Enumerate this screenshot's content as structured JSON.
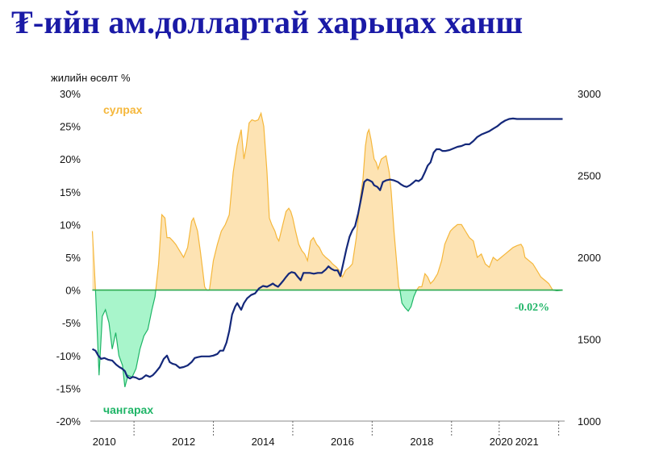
{
  "title": "₮-ийн ам.доллартай харьцах ханш",
  "chart_data": {
    "type": "area",
    "ylabel": "жилийн өсөлт %",
    "ylim": [
      -20,
      30
    ],
    "yticks": [
      "30%",
      "25%",
      "20%",
      "15%",
      "10%",
      "5%",
      "0%",
      "-5%",
      "-10%",
      "-15%",
      "-20%"
    ],
    "y2lim": [
      1000,
      3000
    ],
    "y2ticks": [
      "3000",
      "2500",
      "2000",
      "1500",
      "1000"
    ],
    "xlim": [
      2009.85,
      2021.8
    ],
    "xticks": [
      {
        "label": "2010",
        "x": 2010.2
      },
      {
        "label": "2012",
        "x": 2012.2
      },
      {
        "label": "2014",
        "x": 2014.2
      },
      {
        "label": "2016",
        "x": 2016.2
      },
      {
        "label": "2018",
        "x": 2018.2
      },
      {
        "label": "2020",
        "x": 2020.2
      },
      {
        "label": "2021",
        "x": 2020.85
      }
    ],
    "annotations": {
      "up": "сулрах",
      "down": "чангарах",
      "last": "-0.02%"
    },
    "colors": {
      "up": "#f5b73b",
      "up_fill": "#fde3b3",
      "down": "#1fb567",
      "down_fill": "#a8f5cb",
      "rate": "#14287a",
      "zero": "#2da94f"
    },
    "series": [
      {
        "role": "yoy",
        "points": [
          [
            2009.9,
            9
          ],
          [
            2009.98,
            0
          ],
          [
            2010.07,
            -13
          ],
          [
            2010.15,
            -4
          ],
          [
            2010.23,
            -3
          ],
          [
            2010.32,
            -5
          ],
          [
            2010.4,
            -9
          ],
          [
            2010.49,
            -6.5
          ],
          [
            2010.57,
            -10
          ],
          [
            2010.66,
            -11.5
          ],
          [
            2010.72,
            -14.8
          ],
          [
            2010.8,
            -13
          ],
          [
            2010.9,
            -13.3
          ],
          [
            2011.0,
            -12
          ],
          [
            2011.1,
            -9
          ],
          [
            2011.2,
            -7
          ],
          [
            2011.3,
            -6
          ],
          [
            2011.4,
            -3
          ],
          [
            2011.48,
            -1
          ],
          [
            2011.57,
            4
          ],
          [
            2011.65,
            11.5
          ],
          [
            2011.73,
            11
          ],
          [
            2011.78,
            8
          ],
          [
            2011.85,
            8
          ],
          [
            2011.93,
            7.5
          ],
          [
            2012.0,
            7
          ],
          [
            2012.1,
            6
          ],
          [
            2012.2,
            5
          ],
          [
            2012.3,
            6.5
          ],
          [
            2012.4,
            10.5
          ],
          [
            2012.45,
            11
          ],
          [
            2012.55,
            9
          ],
          [
            2012.62,
            6
          ],
          [
            2012.68,
            3
          ],
          [
            2012.73,
            0.5
          ],
          [
            2012.78,
            0
          ],
          [
            2012.85,
            0
          ],
          [
            2012.95,
            4.5
          ],
          [
            2013.05,
            7
          ],
          [
            2013.15,
            9
          ],
          [
            2013.25,
            10
          ],
          [
            2013.35,
            11.5
          ],
          [
            2013.45,
            18
          ],
          [
            2013.55,
            22
          ],
          [
            2013.65,
            24.5
          ],
          [
            2013.72,
            20
          ],
          [
            2013.78,
            22
          ],
          [
            2013.85,
            25.5
          ],
          [
            2013.92,
            26
          ],
          [
            2014.0,
            25.8
          ],
          [
            2014.08,
            26
          ],
          [
            2014.15,
            27
          ],
          [
            2014.22,
            25
          ],
          [
            2014.3,
            18
          ],
          [
            2014.36,
            11
          ],
          [
            2014.42,
            10
          ],
          [
            2014.5,
            9
          ],
          [
            2014.55,
            8
          ],
          [
            2014.6,
            7.5
          ],
          [
            2014.7,
            10
          ],
          [
            2014.78,
            12
          ],
          [
            2014.85,
            12.5
          ],
          [
            2014.9,
            12
          ],
          [
            2014.95,
            11
          ],
          [
            2015.02,
            9
          ],
          [
            2015.1,
            7
          ],
          [
            2015.18,
            6
          ],
          [
            2015.25,
            5.5
          ],
          [
            2015.32,
            4.5
          ],
          [
            2015.4,
            7.5
          ],
          [
            2015.47,
            8
          ],
          [
            2015.55,
            7
          ],
          [
            2015.62,
            6.5
          ],
          [
            2015.7,
            5.5
          ],
          [
            2015.78,
            5
          ],
          [
            2015.88,
            4.5
          ],
          [
            2015.95,
            4
          ],
          [
            2016.05,
            3.5
          ],
          [
            2016.12,
            3
          ],
          [
            2016.2,
            2
          ],
          [
            2016.28,
            3
          ],
          [
            2016.38,
            3.5
          ],
          [
            2016.45,
            4
          ],
          [
            2016.55,
            8
          ],
          [
            2016.65,
            14
          ],
          [
            2016.72,
            17
          ],
          [
            2016.78,
            22
          ],
          [
            2016.83,
            24
          ],
          [
            2016.87,
            24.5
          ],
          [
            2016.92,
            23
          ],
          [
            2017.0,
            20
          ],
          [
            2017.05,
            19.5
          ],
          [
            2017.1,
            18.5
          ],
          [
            2017.18,
            20
          ],
          [
            2017.3,
            20.5
          ],
          [
            2017.38,
            18
          ],
          [
            2017.43,
            15
          ],
          [
            2017.5,
            9
          ],
          [
            2017.57,
            4
          ],
          [
            2017.62,
            0.5
          ],
          [
            2017.65,
            0
          ],
          [
            2017.7,
            -2
          ],
          [
            2017.78,
            -2.7
          ],
          [
            2017.86,
            -3.2
          ],
          [
            2017.93,
            -2.5
          ],
          [
            2018.0,
            -1
          ],
          [
            2018.07,
            0
          ],
          [
            2018.13,
            0.5
          ],
          [
            2018.2,
            0.5
          ],
          [
            2018.28,
            2.5
          ],
          [
            2018.35,
            2
          ],
          [
            2018.42,
            1
          ],
          [
            2018.5,
            1.5
          ],
          [
            2018.6,
            2.5
          ],
          [
            2018.7,
            4.5
          ],
          [
            2018.78,
            7
          ],
          [
            2018.85,
            8
          ],
          [
            2018.92,
            9
          ],
          [
            2019.0,
            9.5
          ],
          [
            2019.1,
            10
          ],
          [
            2019.2,
            10
          ],
          [
            2019.3,
            9
          ],
          [
            2019.4,
            8
          ],
          [
            2019.5,
            7.5
          ],
          [
            2019.6,
            5
          ],
          [
            2019.7,
            5.5
          ],
          [
            2019.8,
            4
          ],
          [
            2019.9,
            3.5
          ],
          [
            2020.0,
            5
          ],
          [
            2020.1,
            4.5
          ],
          [
            2020.2,
            5
          ],
          [
            2020.3,
            5.5
          ],
          [
            2020.4,
            6
          ],
          [
            2020.5,
            6.5
          ],
          [
            2020.6,
            6.8
          ],
          [
            2020.7,
            7
          ],
          [
            2020.75,
            6.5
          ],
          [
            2020.8,
            5
          ],
          [
            2020.9,
            4.5
          ],
          [
            2021.0,
            4
          ],
          [
            2021.1,
            3
          ],
          [
            2021.2,
            2
          ],
          [
            2021.3,
            1.5
          ],
          [
            2021.4,
            1
          ],
          [
            2021.5,
            0
          ],
          [
            2021.6,
            -0.1
          ],
          [
            2021.75,
            -0.02
          ]
        ]
      },
      {
        "role": "rate",
        "axis": "right",
        "points": [
          [
            2009.9,
            1440
          ],
          [
            2009.98,
            1430
          ],
          [
            2010.05,
            1400
          ],
          [
            2010.12,
            1380
          ],
          [
            2010.2,
            1385
          ],
          [
            2010.3,
            1375
          ],
          [
            2010.4,
            1370
          ],
          [
            2010.5,
            1345
          ],
          [
            2010.58,
            1330
          ],
          [
            2010.65,
            1320
          ],
          [
            2010.72,
            1305
          ],
          [
            2010.78,
            1270
          ],
          [
            2010.85,
            1260
          ],
          [
            2010.92,
            1270
          ],
          [
            2011.0,
            1265
          ],
          [
            2011.08,
            1255
          ],
          [
            2011.15,
            1260
          ],
          [
            2011.25,
            1280
          ],
          [
            2011.35,
            1270
          ],
          [
            2011.42,
            1280
          ],
          [
            2011.5,
            1300
          ],
          [
            2011.6,
            1330
          ],
          [
            2011.7,
            1380
          ],
          [
            2011.78,
            1400
          ],
          [
            2011.85,
            1360
          ],
          [
            2011.92,
            1350
          ],
          [
            2012.0,
            1345
          ],
          [
            2012.1,
            1325
          ],
          [
            2012.2,
            1330
          ],
          [
            2012.3,
            1340
          ],
          [
            2012.4,
            1360
          ],
          [
            2012.48,
            1385
          ],
          [
            2012.55,
            1390
          ],
          [
            2012.65,
            1395
          ],
          [
            2012.75,
            1395
          ],
          [
            2012.85,
            1395
          ],
          [
            2012.95,
            1400
          ],
          [
            2013.05,
            1410
          ],
          [
            2013.12,
            1430
          ],
          [
            2013.2,
            1430
          ],
          [
            2013.28,
            1480
          ],
          [
            2013.35,
            1550
          ],
          [
            2013.42,
            1650
          ],
          [
            2013.5,
            1700
          ],
          [
            2013.55,
            1720
          ],
          [
            2013.6,
            1700
          ],
          [
            2013.65,
            1680
          ],
          [
            2013.72,
            1720
          ],
          [
            2013.8,
            1750
          ],
          [
            2013.9,
            1770
          ],
          [
            2014.0,
            1780
          ],
          [
            2014.1,
            1810
          ],
          [
            2014.2,
            1825
          ],
          [
            2014.3,
            1820
          ],
          [
            2014.38,
            1830
          ],
          [
            2014.45,
            1840
          ],
          [
            2014.5,
            1830
          ],
          [
            2014.58,
            1820
          ],
          [
            2014.65,
            1840
          ],
          [
            2014.72,
            1860
          ],
          [
            2014.78,
            1880
          ],
          [
            2014.85,
            1900
          ],
          [
            2014.92,
            1910
          ],
          [
            2015.0,
            1905
          ],
          [
            2015.08,
            1880
          ],
          [
            2015.15,
            1860
          ],
          [
            2015.22,
            1905
          ],
          [
            2015.3,
            1905
          ],
          [
            2015.38,
            1905
          ],
          [
            2015.48,
            1900
          ],
          [
            2015.58,
            1905
          ],
          [
            2015.68,
            1905
          ],
          [
            2015.78,
            1925
          ],
          [
            2015.85,
            1945
          ],
          [
            2015.92,
            1930
          ],
          [
            2016.0,
            1920
          ],
          [
            2016.08,
            1920
          ],
          [
            2016.15,
            1885
          ],
          [
            2016.22,
            1960
          ],
          [
            2016.3,
            2050
          ],
          [
            2016.38,
            2125
          ],
          [
            2016.45,
            2165
          ],
          [
            2016.52,
            2190
          ],
          [
            2016.6,
            2270
          ],
          [
            2016.68,
            2370
          ],
          [
            2016.75,
            2460
          ],
          [
            2016.82,
            2475
          ],
          [
            2016.88,
            2470
          ],
          [
            2016.95,
            2460
          ],
          [
            2017.0,
            2440
          ],
          [
            2017.08,
            2430
          ],
          [
            2017.15,
            2410
          ],
          [
            2017.22,
            2460
          ],
          [
            2017.3,
            2470
          ],
          [
            2017.4,
            2475
          ],
          [
            2017.5,
            2470
          ],
          [
            2017.6,
            2460
          ],
          [
            2017.68,
            2445
          ],
          [
            2017.75,
            2435
          ],
          [
            2017.82,
            2430
          ],
          [
            2017.9,
            2440
          ],
          [
            2017.98,
            2455
          ],
          [
            2018.05,
            2470
          ],
          [
            2018.12,
            2465
          ],
          [
            2018.2,
            2480
          ],
          [
            2018.28,
            2520
          ],
          [
            2018.35,
            2560
          ],
          [
            2018.42,
            2580
          ],
          [
            2018.5,
            2640
          ],
          [
            2018.57,
            2660
          ],
          [
            2018.65,
            2660
          ],
          [
            2018.72,
            2650
          ],
          [
            2018.8,
            2650
          ],
          [
            2018.9,
            2655
          ],
          [
            2019.0,
            2665
          ],
          [
            2019.1,
            2675
          ],
          [
            2019.2,
            2680
          ],
          [
            2019.3,
            2690
          ],
          [
            2019.4,
            2690
          ],
          [
            2019.5,
            2710
          ],
          [
            2019.6,
            2735
          ],
          [
            2019.7,
            2750
          ],
          [
            2019.8,
            2760
          ],
          [
            2019.9,
            2770
          ],
          [
            2020.0,
            2785
          ],
          [
            2020.1,
            2800
          ],
          [
            2020.2,
            2820
          ],
          [
            2020.3,
            2835
          ],
          [
            2020.4,
            2845
          ],
          [
            2020.5,
            2848
          ],
          [
            2020.6,
            2845
          ],
          [
            2020.7,
            2845
          ],
          [
            2020.8,
            2845
          ],
          [
            2020.9,
            2845
          ],
          [
            2021.0,
            2845
          ],
          [
            2021.2,
            2845
          ],
          [
            2021.4,
            2845
          ],
          [
            2021.6,
            2845
          ],
          [
            2021.75,
            2845
          ]
        ]
      }
    ]
  }
}
